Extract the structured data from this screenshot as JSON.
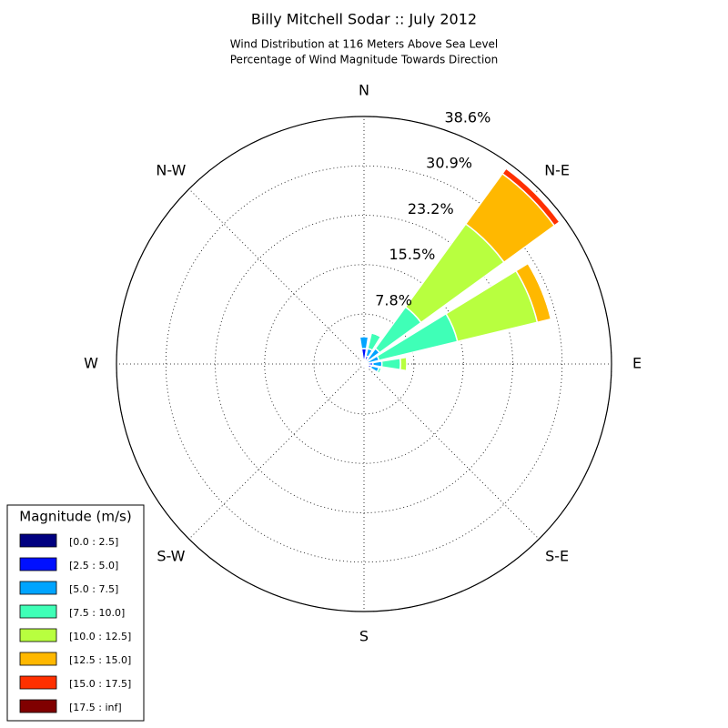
{
  "chart_data": {
    "type": "windrose",
    "title": "Billy Mitchell Sodar :: July 2012",
    "subtitle": [
      "Wind Distribution at 116 Meters Above Sea Level",
      "Percentage of Wind Magnitude Towards Direction"
    ],
    "categories": [
      "N",
      null,
      "N-E",
      null,
      "E",
      null,
      "S-E",
      null,
      "S",
      null,
      "S-W",
      null,
      "W",
      null,
      "N-W",
      null
    ],
    "rlim": [
      0,
      38.6
    ],
    "rticks": [
      {
        "value": 7.8,
        "label": "7.8%"
      },
      {
        "value": 15.5,
        "label": "15.5%"
      },
      {
        "value": 23.2,
        "label": "23.2%"
      },
      {
        "value": 30.9,
        "label": "30.9%"
      },
      {
        "value": 38.6,
        "label": "38.6%"
      }
    ],
    "grid": true,
    "legend_title": "Magnitude (m/s)",
    "legend_position": "lower left",
    "series": [
      {
        "name": "[0.0 : 2.5]",
        "color": "#000080",
        "values": [
          0.7,
          0.3,
          0.2,
          0.1,
          0.3,
          0.3,
          0.3,
          0.2,
          0.2,
          0.2,
          0.2,
          0.2,
          0.2,
          0.2,
          0.3,
          0.4
        ]
      },
      {
        "name": "[2.5 : 5.0]",
        "color": "#0010ff",
        "values": [
          1.7,
          1.0,
          0.8,
          0.4,
          1.1,
          0.9,
          0.5,
          0.3,
          0.2,
          0.1,
          0.1,
          0.1,
          0.1,
          0.1,
          0.2,
          0.3
        ]
      },
      {
        "name": "[5.0 : 7.5]",
        "color": "#00a4ff",
        "values": [
          1.9,
          1.2,
          2.0,
          1.9,
          1.4,
          1.2,
          0.2,
          0.1,
          0.1,
          0,
          0,
          0,
          0,
          0,
          0,
          0.1
        ]
      },
      {
        "name": "[7.5 : 10.0]",
        "color": "#3fffb7",
        "values": [
          0,
          2.5,
          8.0,
          12.6,
          2.9,
          0.4,
          0,
          0,
          0,
          0,
          0,
          0,
          0,
          0,
          0,
          0
        ]
      },
      {
        "name": "[10.0 : 12.5]",
        "color": "#b8ff3f",
        "values": [
          0,
          0,
          16.0,
          12.8,
          1.0,
          0,
          0,
          0,
          0,
          0,
          0,
          0,
          0,
          0,
          0,
          0
        ]
      },
      {
        "name": "[12.5 : 15.0]",
        "color": "#ffb800",
        "values": [
          0,
          0,
          9.7,
          2.2,
          0,
          0,
          0,
          0,
          0,
          0,
          0,
          0,
          0,
          0,
          0,
          0
        ]
      },
      {
        "name": "[15.0 : 17.5]",
        "color": "#ff3000",
        "values": [
          0,
          0,
          1.0,
          0,
          0,
          0,
          0,
          0,
          0,
          0,
          0,
          0,
          0,
          0,
          0,
          0
        ]
      },
      {
        "name": "[17.5 : inf]",
        "color": "#800000",
        "values": [
          0,
          0,
          0,
          0,
          0,
          0,
          0,
          0,
          0,
          0,
          0,
          0,
          0,
          0,
          0,
          0
        ]
      }
    ]
  }
}
